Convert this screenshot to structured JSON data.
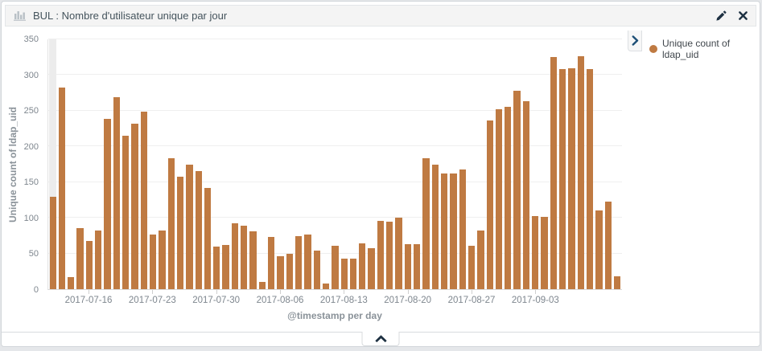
{
  "panel": {
    "header": {
      "title": "BUL : Nombre d'utilisateur unique par jour",
      "icon": "bar-chart-icon",
      "actions": [
        {
          "name": "edit",
          "icon": "pencil-icon"
        },
        {
          "name": "remove",
          "icon": "close-icon"
        }
      ]
    },
    "legend": {
      "toggle_icon": "chevron-right-icon",
      "items": [
        {
          "label": "Unique count of ldap_uid",
          "color": "#bf7a42"
        }
      ]
    },
    "footer": {
      "collapse_icon": "chevron-up-icon"
    },
    "colors": {
      "bar": "#bf7a42",
      "partial_bucket_band": "#ececec",
      "header_icons": "#1e3142",
      "legend_chevron": "#1d4f76",
      "axis_text": "#7e868e",
      "axis_title_text": "#8a9299"
    }
  },
  "chart_data": {
    "type": "bar",
    "title": "BUL : Nombre d'utilisateur unique par jour",
    "xlabel": "@timestamp per day",
    "ylabel": "Unique count of ldap_uid",
    "ylim": [
      0,
      350
    ],
    "yticks": [
      0,
      50,
      100,
      150,
      200,
      250,
      300,
      350
    ],
    "grid": "horizontal",
    "legend_position": "right",
    "bar_color": "#bf7a42",
    "first_bucket_partial": true,
    "series": [
      {
        "name": "Unique count of ldap_uid",
        "color": "#bf7a42"
      }
    ],
    "x": [
      "2017-07-12",
      "2017-07-13",
      "2017-07-14",
      "2017-07-15",
      "2017-07-16",
      "2017-07-17",
      "2017-07-18",
      "2017-07-19",
      "2017-07-20",
      "2017-07-21",
      "2017-07-22",
      "2017-07-23",
      "2017-07-24",
      "2017-07-25",
      "2017-07-26",
      "2017-07-27",
      "2017-07-28",
      "2017-07-29",
      "2017-07-30",
      "2017-07-31",
      "2017-08-01",
      "2017-08-02",
      "2017-08-03",
      "2017-08-04",
      "2017-08-05",
      "2017-08-06",
      "2017-08-07",
      "2017-08-08",
      "2017-08-09",
      "2017-08-10",
      "2017-08-11",
      "2017-08-12",
      "2017-08-13",
      "2017-08-14",
      "2017-08-15",
      "2017-08-16",
      "2017-08-17",
      "2017-08-18",
      "2017-08-19",
      "2017-08-20",
      "2017-08-21",
      "2017-08-22",
      "2017-08-23",
      "2017-08-24",
      "2017-08-25",
      "2017-08-26",
      "2017-08-27",
      "2017-08-28",
      "2017-08-29",
      "2017-08-30",
      "2017-08-31",
      "2017-09-01",
      "2017-09-02",
      "2017-09-03",
      "2017-09-04",
      "2017-09-05",
      "2017-09-06",
      "2017-09-07",
      "2017-09-08",
      "2017-09-09",
      "2017-09-10",
      "2017-09-11",
      "2017-09-12"
    ],
    "values": [
      130,
      282,
      17,
      85,
      68,
      82,
      239,
      269,
      215,
      232,
      249,
      77,
      82,
      183,
      158,
      175,
      166,
      142,
      60,
      62,
      92,
      89,
      81,
      10,
      73,
      46,
      50,
      74,
      76,
      54,
      8,
      61,
      43,
      43,
      64,
      57,
      96,
      94,
      100,
      63,
      63,
      184,
      175,
      162,
      162,
      168,
      61,
      82,
      236,
      252,
      255,
      278,
      263,
      102,
      101,
      325,
      308,
      310,
      326,
      308,
      110,
      123,
      18
    ],
    "xticks": [
      {
        "index": 4,
        "label": "2017-07-16"
      },
      {
        "index": 11,
        "label": "2017-07-23"
      },
      {
        "index": 18,
        "label": "2017-07-30"
      },
      {
        "index": 25,
        "label": "2017-08-06"
      },
      {
        "index": 32,
        "label": "2017-08-13"
      },
      {
        "index": 39,
        "label": "2017-08-20"
      },
      {
        "index": 46,
        "label": "2017-08-27"
      },
      {
        "index": 53,
        "label": "2017-09-03"
      }
    ]
  }
}
